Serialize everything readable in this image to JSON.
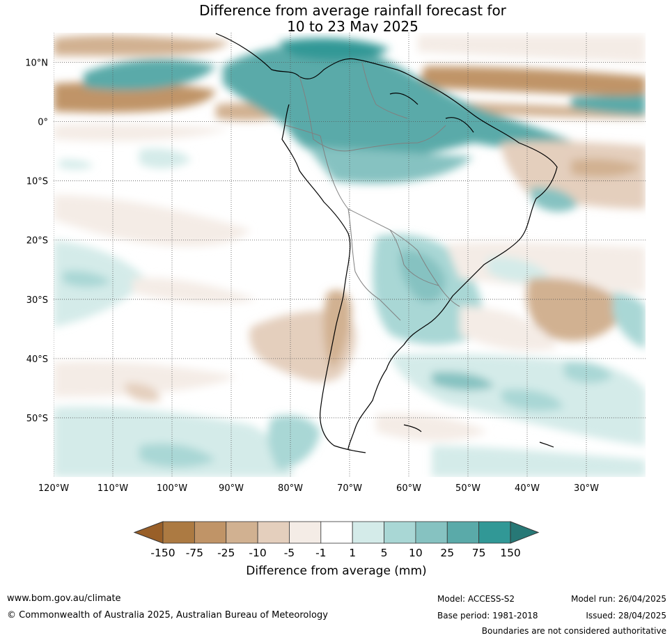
{
  "title": {
    "line1": "Difference from average rainfall forecast for",
    "line2": "10 to 23 May 2025"
  },
  "map": {
    "lat_labels": [
      "10°N",
      "0°",
      "10°S",
      "20°S",
      "30°S",
      "40°S",
      "50°S"
    ],
    "lat_values": [
      10,
      0,
      -10,
      -20,
      -30,
      -40,
      -50
    ],
    "lon_labels": [
      "120°W",
      "110°W",
      "100°W",
      "90°W",
      "80°W",
      "70°W",
      "60°W",
      "50°W",
      "40°W",
      "30°W"
    ],
    "lon_values": [
      -120,
      -110,
      -100,
      -90,
      -80,
      -70,
      -60,
      -50,
      -40,
      -30
    ],
    "lat_range": [
      -60,
      15
    ],
    "lon_range": [
      -120,
      -20
    ]
  },
  "colorbar": {
    "ticks": [
      "-150",
      "-75",
      "-25",
      "-10",
      "-5",
      "-1",
      "1",
      "5",
      "10",
      "25",
      "75",
      "150"
    ],
    "colors": [
      "#ac7a42",
      "#c09467",
      "#d1b191",
      "#e4cfbd",
      "#f4ece6",
      "#ffffff",
      "#d4ebe9",
      "#a9d7d5",
      "#86c2c1",
      "#5aaaa9",
      "#319896",
      "#277876"
    ],
    "under_color": "#995f28",
    "over_color": "#277876",
    "label": "Difference from average (mm)"
  },
  "footer": {
    "website": "www.bom.gov.au/climate",
    "copyright": "© Commonwealth of Australia 2025, Australian Bureau of Meteorology",
    "model": "Model: ACCESS-S2",
    "base_period": "Base period: 1981-2018",
    "model_run": "Model run: 26/04/2025",
    "issued": "Issued: 28/04/2025",
    "disclaimer": "Boundaries are not considered authoritative"
  }
}
